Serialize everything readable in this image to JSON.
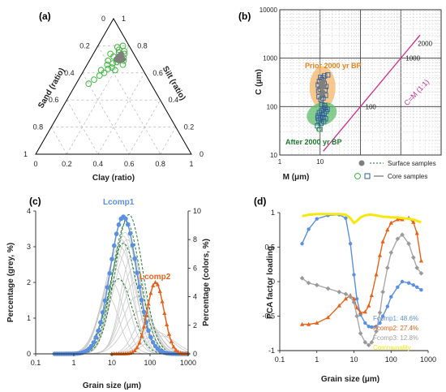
{
  "colors": {
    "comp1": "#5B8FE0",
    "comp2": "#E8631A",
    "comp3": "#A8A8A8",
    "comm": "#F6E80E",
    "green": "#3DB83D",
    "darkgreen": "#1E7A30",
    "orange_fill": "#F5B56A",
    "green_fill": "#5DBE6A",
    "magenta": "#D12A8E",
    "core_blue": "#2E5C9A",
    "grey": "#7F7F7F"
  },
  "chart_data": [
    {
      "id": "a",
      "type": "scatter",
      "panel_label": "(a)",
      "subtype": "ternary",
      "axis_labels": {
        "left": "Sand (ratio)",
        "right": "Silt (ratio)",
        "bottom": "Clay (ratio)"
      },
      "bottom_ticks": [
        "0",
        "0.2",
        "0.4",
        "0.6",
        "0.8",
        "1"
      ],
      "left_ticks": [
        "1",
        "0.8",
        "0.6",
        "0.4",
        "0.2",
        "0"
      ],
      "right_ticks": [
        "0",
        "0.2",
        "0.4",
        "0.6",
        "0.8",
        "1"
      ],
      "core_samples": [
        {
          "clay": 0.08,
          "silt": 0.52
        },
        {
          "clay": 0.1,
          "silt": 0.55
        },
        {
          "clay": 0.12,
          "silt": 0.58
        },
        {
          "clay": 0.14,
          "silt": 0.6
        },
        {
          "clay": 0.11,
          "silt": 0.62
        },
        {
          "clay": 0.15,
          "silt": 0.63
        },
        {
          "clay": 0.13,
          "silt": 0.66
        },
        {
          "clay": 0.16,
          "silt": 0.67
        },
        {
          "clay": 0.12,
          "silt": 0.69
        },
        {
          "clay": 0.17,
          "silt": 0.7
        },
        {
          "clay": 0.14,
          "silt": 0.72
        },
        {
          "clay": 0.18,
          "silt": 0.73
        },
        {
          "clay": 0.16,
          "silt": 0.75
        },
        {
          "clay": 0.19,
          "silt": 0.76
        },
        {
          "clay": 0.15,
          "silt": 0.77
        },
        {
          "clay": 0.2,
          "silt": 0.74
        },
        {
          "clay": 0.21,
          "silt": 0.71
        },
        {
          "clay": 0.18,
          "silt": 0.68
        },
        {
          "clay": 0.17,
          "silt": 0.64
        },
        {
          "clay": 0.22,
          "silt": 0.69
        },
        {
          "clay": 0.23,
          "silt": 0.66
        },
        {
          "clay": 0.2,
          "silt": 0.62
        },
        {
          "clay": 0.13,
          "silt": 0.79
        },
        {
          "clay": 0.16,
          "silt": 0.8
        },
        {
          "clay": 0.11,
          "silt": 0.74
        }
      ],
      "surface_samples": [
        {
          "clay": 0.17,
          "silt": 0.72
        },
        {
          "clay": 0.18,
          "silt": 0.7
        },
        {
          "clay": 0.19,
          "silt": 0.72
        },
        {
          "clay": 0.18,
          "silt": 0.74
        },
        {
          "clay": 0.2,
          "silt": 0.71
        },
        {
          "clay": 0.19,
          "silt": 0.69
        },
        {
          "clay": 0.21,
          "silt": 0.7
        },
        {
          "clay": 0.17,
          "silt": 0.7
        }
      ]
    },
    {
      "id": "b",
      "type": "scatter",
      "panel_label": "(b)",
      "subtype": "CM-diagram",
      "xlabel": "M (μm)",
      "ylabel": "C (μm)",
      "xscale": "log",
      "yscale": "log",
      "xlim": [
        1,
        10000
      ],
      "ylim": [
        10,
        10000
      ],
      "x_ticks": [
        "1",
        "10"
      ],
      "y_ticks": [
        "10",
        "100",
        "1000",
        "10000"
      ],
      "line_label": "C=M (1:1)",
      "line_ticks": [
        "100",
        "1000",
        "2000"
      ],
      "region_labels": [
        "Prior 2000 yr BP",
        "After 2000 yr BP"
      ],
      "legend": {
        "surface": "Surface samples",
        "core": "Core samples"
      },
      "core_upper": [
        [
          9.2,
          210
        ],
        [
          9.6,
          330
        ],
        [
          10.2,
          400
        ],
        [
          10.8,
          270
        ],
        [
          11.3,
          180
        ],
        [
          12.0,
          390
        ],
        [
          12.6,
          300
        ],
        [
          13.2,
          220
        ],
        [
          14.0,
          260
        ],
        [
          9.4,
          160
        ],
        [
          10.5,
          140
        ],
        [
          11.8,
          150
        ],
        [
          12.9,
          430
        ],
        [
          15.5,
          450
        ],
        [
          9.0,
          280
        ],
        [
          11.0,
          360
        ],
        [
          13.6,
          170
        ],
        [
          10.0,
          230
        ]
      ],
      "core_lower": [
        [
          9.0,
          65
        ],
        [
          9.6,
          75
        ],
        [
          10.2,
          58
        ],
        [
          10.8,
          82
        ],
        [
          11.3,
          68
        ],
        [
          12.0,
          90
        ],
        [
          12.6,
          72
        ],
        [
          13.2,
          95
        ],
        [
          14.0,
          80
        ],
        [
          9.4,
          52
        ],
        [
          10.5,
          45
        ],
        [
          11.8,
          60
        ],
        [
          12.9,
          105
        ],
        [
          15.0,
          88
        ],
        [
          8.6,
          40
        ],
        [
          11.0,
          110
        ],
        [
          13.6,
          56
        ],
        [
          9.9,
          34
        ],
        [
          12.3,
          50
        ],
        [
          8.8,
          58
        ]
      ],
      "surface": [
        [
          10.5,
          300
        ],
        [
          11.2,
          250
        ],
        [
          12.1,
          330
        ],
        [
          11.8,
          200
        ],
        [
          10.9,
          180
        ],
        [
          12.6,
          270
        ]
      ]
    },
    {
      "id": "c",
      "type": "line",
      "panel_label": "(c)",
      "xlabel": "Grain size (μm)",
      "ylabel_left": "Percentage (grey, %)",
      "ylabel_right": "Percentage (colors, %)",
      "xscale": "log",
      "xlim": [
        0.1,
        1000
      ],
      "ylim_left": [
        0,
        4
      ],
      "ylim_right": [
        0,
        10
      ],
      "x_ticks": [
        "0.1",
        "1",
        "10",
        "100",
        "1000"
      ],
      "y_ticks_left": [
        "0",
        "1",
        "2",
        "3",
        "4"
      ],
      "y_ticks_right": [
        "0",
        "2",
        "4",
        "6",
        "8",
        "10"
      ],
      "annotations": [
        "Lcomp1",
        "Lcomp2"
      ],
      "series": [
        {
          "name": "Lcomp1",
          "peak_x": 20,
          "peak_y": 9.6,
          "sigma_log": 0.35,
          "axis": "right"
        },
        {
          "name": "Lcomp2",
          "peak_x": 140,
          "peak_y": 5.0,
          "sigma_log": 0.22,
          "axis": "right"
        }
      ],
      "grey_peaks_x": [
        8,
        10,
        12,
        14,
        16,
        18,
        20,
        22,
        25,
        28,
        32,
        36,
        40,
        45,
        55,
        70,
        90,
        120,
        160,
        200
      ],
      "grey_peaks_y": [
        1.6,
        2.0,
        2.4,
        2.8,
        3.0,
        3.2,
        3.3,
        3.4,
        3.2,
        3.0,
        2.7,
        2.4,
        2.0,
        1.6,
        1.2,
        1.0,
        0.8,
        0.7,
        0.6,
        0.5
      ],
      "green_peaks_x": [
        15,
        20,
        24,
        28
      ],
      "green_peaks_y": [
        2.1,
        3.1,
        3.7,
        3.9
      ]
    },
    {
      "id": "d",
      "type": "line",
      "panel_label": "(d)",
      "xlabel": "Grain size (μm)",
      "ylabel": "PCA factor loading",
      "xscale": "log",
      "xlim": [
        0.1,
        1000
      ],
      "ylim": [
        -1,
        1
      ],
      "x_ticks": [
        "0.1",
        "1",
        "10",
        "100",
        "1000"
      ],
      "y_ticks": [
        "-1",
        "-0.5",
        "0",
        "0.5",
        "1"
      ],
      "series": [
        {
          "name": "Fcomp1: 48.6%",
          "x": [
            0.4,
            0.6,
            1,
            2,
            4,
            6,
            8,
            10,
            12,
            15,
            20,
            25,
            30,
            40,
            50,
            60,
            80,
            100,
            150,
            200,
            300,
            400,
            500,
            650
          ],
          "y": [
            0.55,
            0.76,
            0.91,
            0.96,
            0.97,
            0.92,
            0.55,
            0.1,
            -0.25,
            -0.48,
            -0.6,
            -0.65,
            -0.66,
            -0.65,
            -0.6,
            -0.5,
            -0.36,
            -0.22,
            -0.08,
            0.0,
            -0.02,
            -0.05,
            -0.08,
            -0.12
          ]
        },
        {
          "name": "Fcomp2: 27.4%",
          "x": [
            0.4,
            0.6,
            1,
            2,
            4,
            6,
            8,
            10,
            12,
            15,
            20,
            25,
            30,
            40,
            50,
            60,
            80,
            100,
            150,
            200,
            300,
            400,
            500,
            650
          ],
          "y": [
            -0.62,
            -0.62,
            -0.6,
            -0.52,
            -0.35,
            -0.25,
            -0.2,
            -0.25,
            -0.38,
            -0.45,
            -0.44,
            -0.35,
            -0.2,
            0.1,
            0.38,
            0.58,
            0.75,
            0.85,
            0.9,
            0.9,
            0.92,
            0.86,
            0.7,
            0.3
          ]
        },
        {
          "name": "Fcomp3: 12.8%",
          "x": [
            0.4,
            0.6,
            1,
            2,
            4,
            6,
            8,
            10,
            12,
            15,
            20,
            25,
            30,
            40,
            50,
            60,
            80,
            100,
            150,
            200,
            300,
            400,
            500,
            650
          ],
          "y": [
            0.05,
            -0.02,
            -0.05,
            -0.1,
            -0.15,
            -0.18,
            -0.22,
            -0.3,
            -0.5,
            -0.75,
            -0.88,
            -0.92,
            -0.88,
            -0.72,
            -0.45,
            -0.15,
            0.2,
            0.42,
            0.62,
            0.68,
            0.55,
            0.35,
            0.2,
            0.12
          ]
        },
        {
          "name": "Communality",
          "x": [
            0.4,
            0.6,
            1,
            2,
            4,
            6,
            8,
            10,
            12,
            15,
            20,
            25,
            30,
            40,
            50,
            60,
            80,
            100,
            150,
            200,
            300,
            400,
            500,
            650
          ],
          "y": [
            0.95,
            0.97,
            0.98,
            0.98,
            0.98,
            0.97,
            0.92,
            0.85,
            0.88,
            0.93,
            0.96,
            0.97,
            0.97,
            0.96,
            0.95,
            0.94,
            0.94,
            0.93,
            0.93,
            0.92,
            0.91,
            0.9,
            0.88,
            0.86
          ]
        }
      ]
    }
  ]
}
